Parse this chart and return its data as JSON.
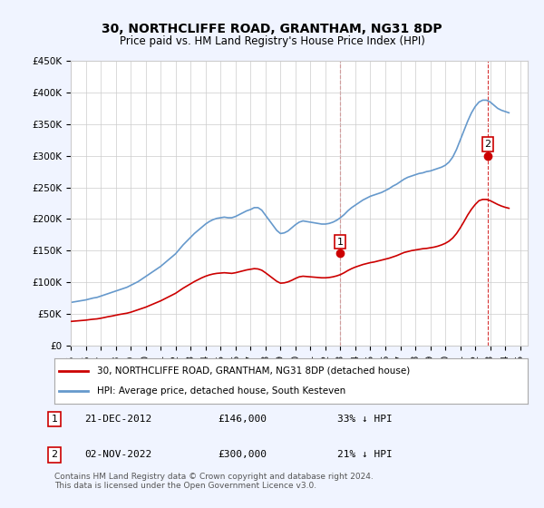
{
  "title": "30, NORTHCLIFFE ROAD, GRANTHAM, NG31 8DP",
  "subtitle": "Price paid vs. HM Land Registry's House Price Index (HPI)",
  "legend_line1": "30, NORTHCLIFFE ROAD, GRANTHAM, NG31 8DP (detached house)",
  "legend_line2": "HPI: Average price, detached house, South Kesteven",
  "annotation1_label": "1",
  "annotation1_date": "21-DEC-2012",
  "annotation1_price": "£146,000",
  "annotation1_hpi": "33% ↓ HPI",
  "annotation2_label": "2",
  "annotation2_date": "02-NOV-2022",
  "annotation2_price": "£300,000",
  "annotation2_hpi": "21% ↓ HPI",
  "footnote": "Contains HM Land Registry data © Crown copyright and database right 2024.\nThis data is licensed under the Open Government Licence v3.0.",
  "property_color": "#cc0000",
  "hpi_color": "#6699cc",
  "dashed_line_color": "#cc0000",
  "background_color": "#f0f4ff",
  "plot_bg_color": "#ffffff",
  "ylim": [
    0,
    450000
  ],
  "yticks": [
    0,
    50000,
    100000,
    150000,
    200000,
    250000,
    300000,
    350000,
    400000,
    450000
  ],
  "sale1_x": 2012.97,
  "sale1_y": 146000,
  "sale2_x": 2022.84,
  "sale2_y": 300000,
  "hpi_x": [
    1995,
    1995.25,
    1995.5,
    1995.75,
    1996,
    1996.25,
    1996.5,
    1996.75,
    1997,
    1997.25,
    1997.5,
    1997.75,
    1998,
    1998.25,
    1998.5,
    1998.75,
    1999,
    1999.25,
    1999.5,
    1999.75,
    2000,
    2000.25,
    2000.5,
    2000.75,
    2001,
    2001.25,
    2001.5,
    2001.75,
    2002,
    2002.25,
    2002.5,
    2002.75,
    2003,
    2003.25,
    2003.5,
    2003.75,
    2004,
    2004.25,
    2004.5,
    2004.75,
    2005,
    2005.25,
    2005.5,
    2005.75,
    2006,
    2006.25,
    2006.5,
    2006.75,
    2007,
    2007.25,
    2007.5,
    2007.75,
    2008,
    2008.25,
    2008.5,
    2008.75,
    2009,
    2009.25,
    2009.5,
    2009.75,
    2010,
    2010.25,
    2010.5,
    2010.75,
    2011,
    2011.25,
    2011.5,
    2011.75,
    2012,
    2012.25,
    2012.5,
    2012.75,
    2013,
    2013.25,
    2013.5,
    2013.75,
    2014,
    2014.25,
    2014.5,
    2014.75,
    2015,
    2015.25,
    2015.5,
    2015.75,
    2016,
    2016.25,
    2016.5,
    2016.75,
    2017,
    2017.25,
    2017.5,
    2017.75,
    2018,
    2018.25,
    2018.5,
    2018.75,
    2019,
    2019.25,
    2019.5,
    2019.75,
    2020,
    2020.25,
    2020.5,
    2020.75,
    2021,
    2021.25,
    2021.5,
    2021.75,
    2022,
    2022.25,
    2022.5,
    2022.75,
    2023,
    2023.25,
    2023.5,
    2023.75,
    2024,
    2024.25
  ],
  "hpi_y": [
    68000,
    69000,
    70000,
    71000,
    72000,
    73500,
    75000,
    76000,
    78000,
    80000,
    82000,
    84000,
    86000,
    88000,
    90000,
    92000,
    95000,
    98000,
    101000,
    105000,
    109000,
    113000,
    117000,
    121000,
    125000,
    130000,
    135000,
    140000,
    145000,
    152000,
    159000,
    165000,
    171000,
    177000,
    182000,
    187000,
    192000,
    196000,
    199000,
    201000,
    202000,
    203000,
    202000,
    202000,
    204000,
    207000,
    210000,
    213000,
    215000,
    218000,
    218000,
    214000,
    206000,
    198000,
    190000,
    182000,
    177000,
    178000,
    181000,
    186000,
    191000,
    195000,
    197000,
    196000,
    195000,
    194000,
    193000,
    192000,
    192000,
    193000,
    195000,
    198000,
    202000,
    207000,
    213000,
    218000,
    222000,
    226000,
    230000,
    233000,
    236000,
    238000,
    240000,
    242000,
    245000,
    248000,
    252000,
    255000,
    259000,
    263000,
    266000,
    268000,
    270000,
    272000,
    273000,
    275000,
    276000,
    278000,
    280000,
    282000,
    285000,
    290000,
    298000,
    310000,
    325000,
    340000,
    355000,
    368000,
    378000,
    385000,
    388000,
    388000,
    385000,
    380000,
    375000,
    372000,
    370000,
    368000
  ],
  "prop_x": [
    1995,
    1995.25,
    1995.5,
    1995.75,
    1996,
    1996.25,
    1996.5,
    1996.75,
    1997,
    1997.25,
    1997.5,
    1997.75,
    1998,
    1998.25,
    1998.5,
    1998.75,
    1999,
    1999.25,
    1999.5,
    1999.75,
    2000,
    2000.25,
    2000.5,
    2000.75,
    2001,
    2001.25,
    2001.5,
    2001.75,
    2002,
    2002.25,
    2002.5,
    2002.75,
    2003,
    2003.25,
    2003.5,
    2003.75,
    2004,
    2004.25,
    2004.5,
    2004.75,
    2005,
    2005.25,
    2005.5,
    2005.75,
    2006,
    2006.25,
    2006.5,
    2006.75,
    2007,
    2007.25,
    2007.5,
    2007.75,
    2008,
    2008.25,
    2008.5,
    2008.75,
    2009,
    2009.25,
    2009.5,
    2009.75,
    2010,
    2010.25,
    2010.5,
    2010.75,
    2011,
    2011.25,
    2011.5,
    2011.75,
    2012,
    2012.25,
    2012.5,
    2012.75,
    2013,
    2013.25,
    2013.5,
    2013.75,
    2014,
    2014.25,
    2014.5,
    2014.75,
    2015,
    2015.25,
    2015.5,
    2015.75,
    2016,
    2016.25,
    2016.5,
    2016.75,
    2017,
    2017.25,
    2017.5,
    2017.75,
    2018,
    2018.25,
    2018.5,
    2018.75,
    2019,
    2019.25,
    2019.5,
    2019.75,
    2020,
    2020.25,
    2020.5,
    2020.75,
    2021,
    2021.25,
    2021.5,
    2021.75,
    2022,
    2022.25,
    2022.5,
    2022.75,
    2023,
    2023.25,
    2023.5,
    2023.75,
    2024,
    2024.25
  ],
  "prop_y": [
    38000,
    38500,
    39000,
    39500,
    40000,
    40800,
    41500,
    42000,
    43000,
    44200,
    45500,
    46500,
    47800,
    49000,
    50000,
    51000,
    52500,
    54500,
    56500,
    58500,
    60500,
    63000,
    65500,
    68000,
    70500,
    73500,
    76500,
    79500,
    82500,
    86500,
    90500,
    94000,
    97500,
    101000,
    104000,
    107000,
    109500,
    111500,
    113000,
    114000,
    114500,
    115000,
    114500,
    114000,
    115000,
    116500,
    118000,
    119500,
    120500,
    121500,
    121000,
    119000,
    115000,
    110500,
    106000,
    101500,
    98500,
    99000,
    100500,
    103000,
    106000,
    108500,
    109500,
    109000,
    108500,
    108000,
    107500,
    107000,
    107000,
    107500,
    108500,
    110000,
    112000,
    115000,
    118500,
    121500,
    124000,
    126000,
    128000,
    129500,
    131000,
    132000,
    133500,
    135000,
    136500,
    138000,
    140000,
    142000,
    144500,
    147000,
    148500,
    150000,
    151000,
    152000,
    153000,
    153500,
    154500,
    155500,
    157000,
    159000,
    161500,
    165000,
    170000,
    177000,
    186000,
    196000,
    206500,
    215500,
    223000,
    229000,
    231000,
    231000,
    229000,
    226000,
    223000,
    220500,
    218500,
    217000
  ],
  "xtick_years": [
    1995,
    1996,
    1997,
    1998,
    1999,
    2000,
    2001,
    2002,
    2003,
    2004,
    2005,
    2006,
    2007,
    2008,
    2009,
    2010,
    2011,
    2012,
    2013,
    2014,
    2015,
    2016,
    2017,
    2018,
    2019,
    2020,
    2021,
    2022,
    2023,
    2024,
    2025
  ]
}
